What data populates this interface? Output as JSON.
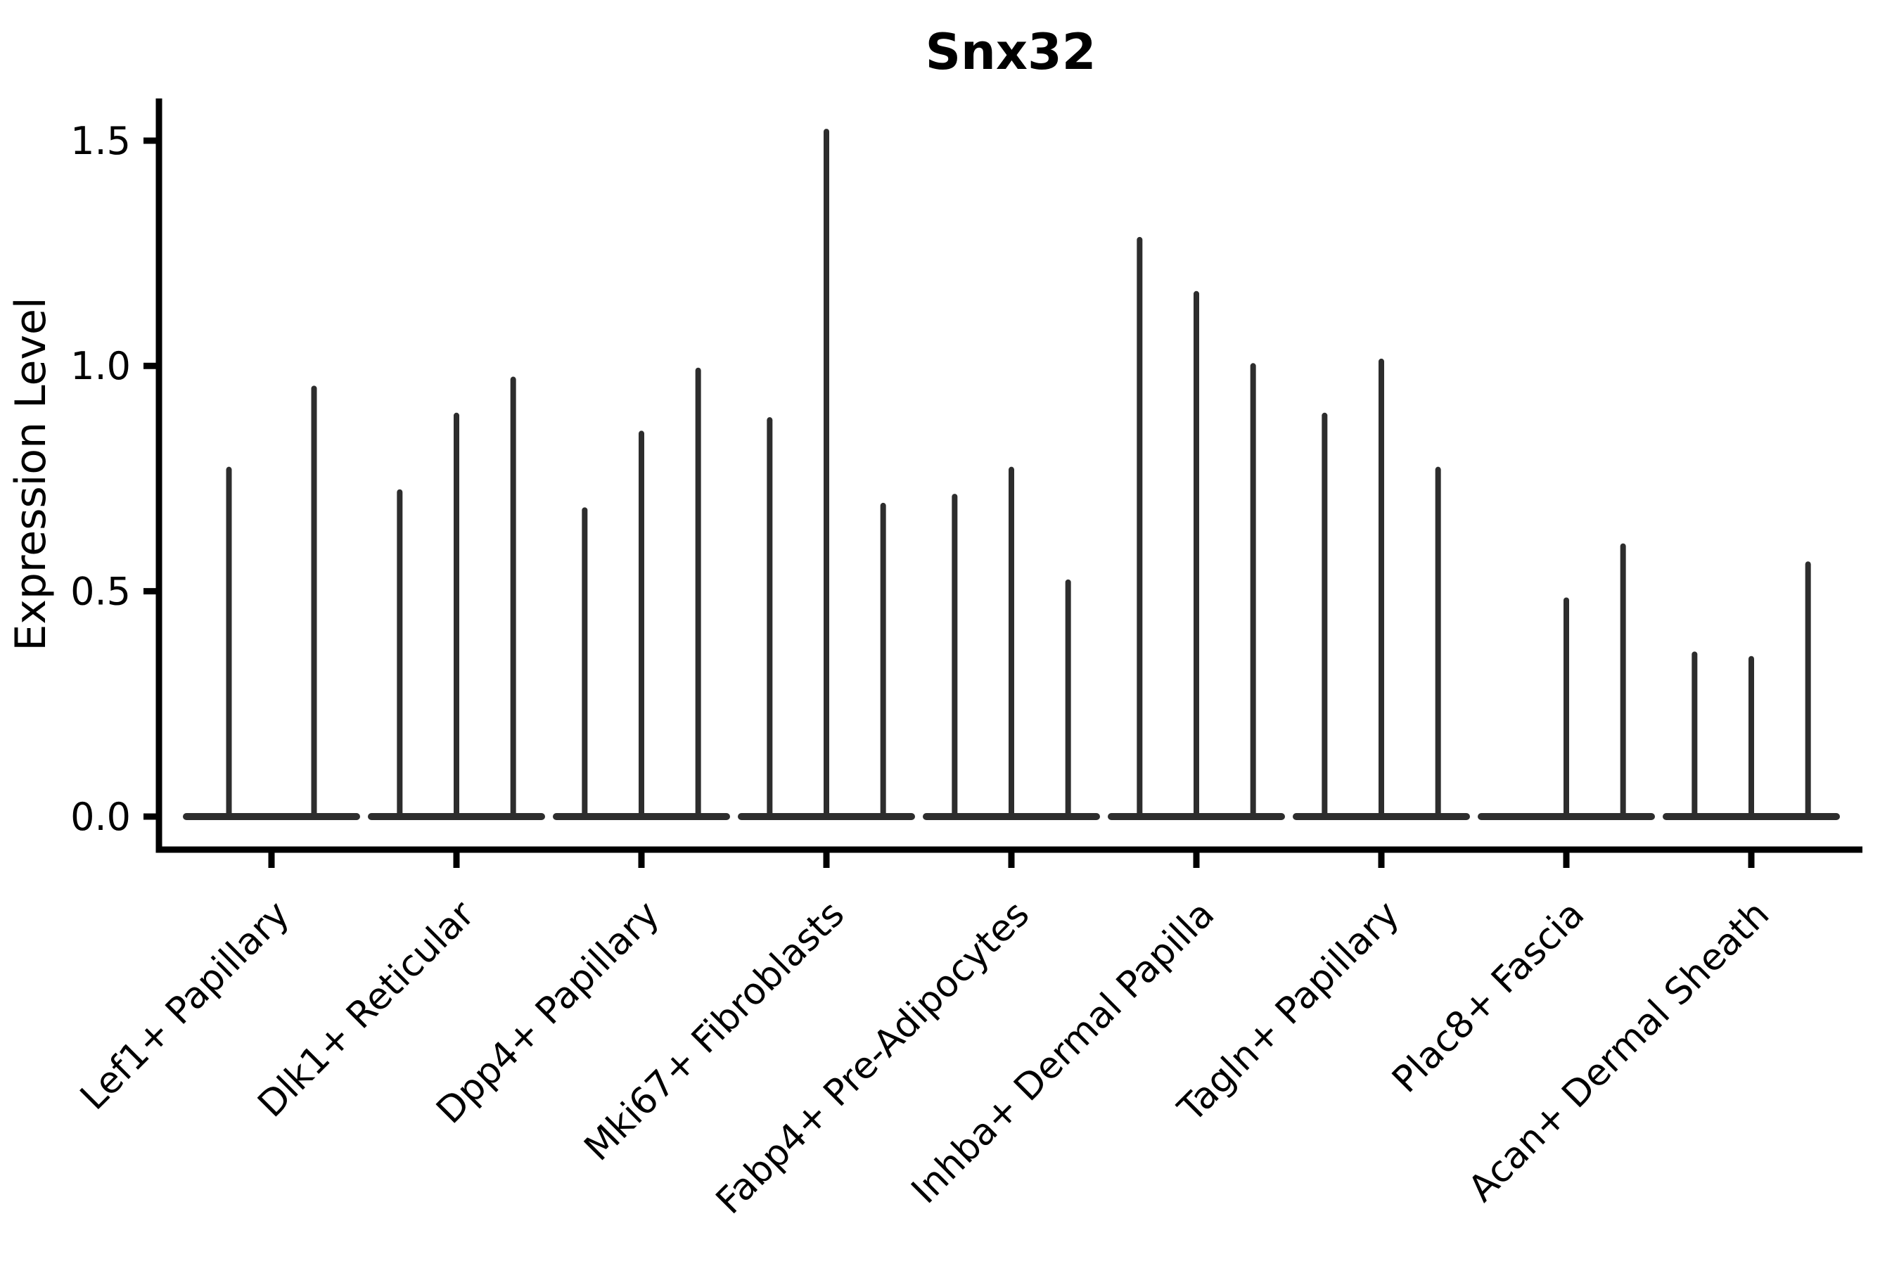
{
  "title": "Snx32",
  "axes": {
    "y_label": "Expression Level",
    "x_label": ""
  },
  "colors": {
    "violin_line": "#2d2d2d",
    "spine": "#000000",
    "text": "#000000",
    "background": "#ffffff"
  },
  "chart_data": {
    "type": "violin",
    "title": "Snx32",
    "xlabel": "",
    "ylabel": "Expression Level",
    "ylim": [
      -0.07,
      1.59
    ],
    "y_ticks": [
      "0.0",
      "0.5",
      "1.0",
      "1.5"
    ],
    "y_tick_values": [
      0.0,
      0.5,
      1.0,
      1.5
    ],
    "grid": false,
    "legend": "none",
    "description": "Violin plot of Snx32 expression; each cluster shows 2-3 flattened violins (mass at 0) with thin spikes reaching the maximum expression value. A zero in violin_maxima means that violin is completely flat at 0.",
    "categories": [
      {
        "label": "Lef1+ Papillary",
        "violin_maxima": [
          0.77,
          0.95
        ]
      },
      {
        "label": "Dlk1+ Reticular",
        "violin_maxima": [
          0.72,
          0.89,
          0.97
        ]
      },
      {
        "label": "Dpp4+ Papillary",
        "violin_maxima": [
          0.68,
          0.85,
          0.99
        ]
      },
      {
        "label": "Mki67+ Fibroblasts",
        "violin_maxima": [
          0.88,
          1.52,
          0.69
        ]
      },
      {
        "label": "Fabp4+ Pre-Adipocytes",
        "violin_maxima": [
          0.71,
          0.77,
          0.52
        ]
      },
      {
        "label": "Inhba+ Dermal Papilla",
        "violin_maxima": [
          1.28,
          1.16,
          1.0
        ]
      },
      {
        "label": "Tagln+ Papillary",
        "violin_maxima": [
          0.89,
          1.01,
          0.77
        ]
      },
      {
        "label": "Plac8+ Fascia",
        "violin_maxima": [
          0,
          0.48,
          0.6
        ]
      },
      {
        "label": "Acan+ Dermal Sheath",
        "violin_maxima": [
          0.36,
          0.35,
          0.56
        ]
      }
    ]
  }
}
